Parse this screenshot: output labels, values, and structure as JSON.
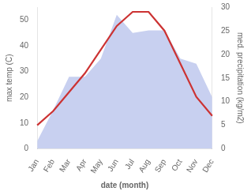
{
  "chart_data": {
    "type": "line",
    "xlabel": "date (month)",
    "ylabel": "max temp (C)",
    "y2label": "med. precipitation (kg/m2)",
    "categories": [
      "Jan",
      "Feb",
      "Mar",
      "Apr",
      "May",
      "Jun",
      "Jul",
      "Aug",
      "Sep",
      "Oct",
      "Nov",
      "Dec"
    ],
    "series": [
      {
        "type": "area",
        "color": "#c8d0f0",
        "values": [
          3,
          15,
          28,
          28,
          35,
          52,
          45,
          46,
          46,
          35,
          33,
          20
        ]
      },
      {
        "type": "line",
        "color": "#cc3333",
        "axis": "y2",
        "values": [
          5,
          8,
          12,
          16,
          21,
          26,
          29,
          29,
          25,
          18,
          11,
          7
        ]
      }
    ],
    "ylim": [
      0,
      55
    ],
    "yticks": [
      0,
      10,
      20,
      30,
      40,
      50
    ],
    "y2lim": [
      0,
      30
    ],
    "y2ticks": [
      0,
      5,
      10,
      15,
      20,
      25,
      30
    ],
    "grid": false
  }
}
